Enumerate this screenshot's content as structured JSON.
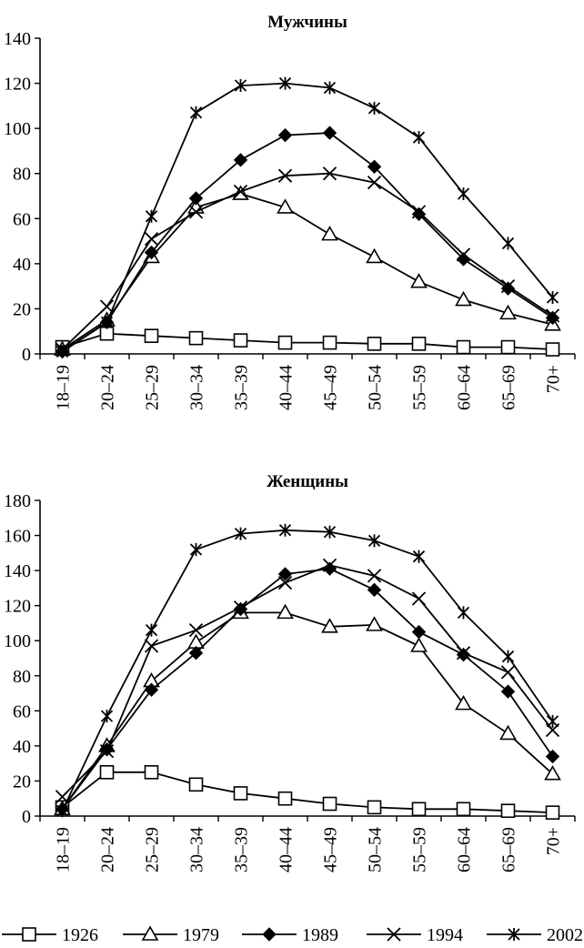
{
  "chart_data": [
    {
      "type": "line",
      "title": "Мужчины",
      "xlabel": "",
      "ylabel": "",
      "categories": [
        "18–19",
        "20–24",
        "25–29",
        "30–34",
        "35–39",
        "40–44",
        "45–49",
        "50–54",
        "55–59",
        "60–64",
        "65–69",
        "70+"
      ],
      "yticks": [
        "0",
        "20",
        "40",
        "60",
        "80",
        "100",
        "120",
        "140"
      ],
      "ylim": [
        0,
        140
      ],
      "grid": false,
      "series": [
        {
          "name": "1926",
          "marker": "square-open",
          "values": [
            3,
            9,
            8,
            7,
            6,
            5,
            5,
            4.5,
            4.5,
            3,
            3,
            2
          ]
        },
        {
          "name": "1979",
          "marker": "triangle-open",
          "values": [
            2,
            15,
            43,
            65,
            71,
            65,
            53,
            43,
            32,
            24,
            18,
            13
          ]
        },
        {
          "name": "1989",
          "marker": "diamond-filled",
          "values": [
            1,
            14,
            45,
            69,
            86,
            97,
            98,
            83,
            62,
            42,
            29,
            16
          ]
        },
        {
          "name": "1994",
          "marker": "x",
          "values": [
            2,
            21,
            51,
            63,
            72,
            79,
            80,
            76,
            63,
            44,
            30,
            17
          ]
        },
        {
          "name": "2002",
          "marker": "star",
          "values": [
            1,
            14,
            61,
            107,
            119,
            120,
            118,
            109,
            96,
            71,
            49,
            25
          ]
        }
      ]
    },
    {
      "type": "line",
      "title": "Женщины",
      "xlabel": "",
      "ylabel": "",
      "categories": [
        "18–19",
        "20–24",
        "25–29",
        "30–34",
        "35–39",
        "40–44",
        "45–49",
        "50–54",
        "55–59",
        "60–64",
        "65–69",
        "70+"
      ],
      "yticks": [
        "0",
        "20",
        "40",
        "60",
        "80",
        "100",
        "120",
        "140",
        "160",
        "180"
      ],
      "ylim": [
        0,
        180
      ],
      "grid": false,
      "series": [
        {
          "name": "1926",
          "marker": "square-open",
          "values": [
            5,
            25,
            25,
            18,
            13,
            10,
            7,
            5,
            4,
            4,
            3,
            2
          ]
        },
        {
          "name": "1979",
          "marker": "triangle-open",
          "values": [
            4,
            40,
            77,
            99,
            116,
            116,
            108,
            109,
            97,
            64,
            47,
            24
          ]
        },
        {
          "name": "1989",
          "marker": "diamond-filled",
          "values": [
            4,
            38,
            72,
            93,
            118,
            138,
            141,
            129,
            105,
            92,
            71,
            34
          ]
        },
        {
          "name": "1994",
          "marker": "x",
          "values": [
            11,
            37,
            97,
            106,
            119,
            133,
            143,
            137,
            124,
            93,
            82,
            49
          ]
        },
        {
          "name": "2002",
          "marker": "star",
          "values": [
            3,
            57,
            106,
            152,
            161,
            163,
            162,
            157,
            148,
            116,
            91,
            54
          ]
        }
      ]
    }
  ],
  "legend": {
    "position": "bottom",
    "items": [
      {
        "label": "1926",
        "marker": "square-open"
      },
      {
        "label": "1979",
        "marker": "triangle-open"
      },
      {
        "label": "1989",
        "marker": "diamond-filled"
      },
      {
        "label": "1994",
        "marker": "x"
      },
      {
        "label": "2002",
        "marker": "star"
      }
    ]
  },
  "colors": {
    "line": "#000000",
    "background": "#ffffff"
  }
}
